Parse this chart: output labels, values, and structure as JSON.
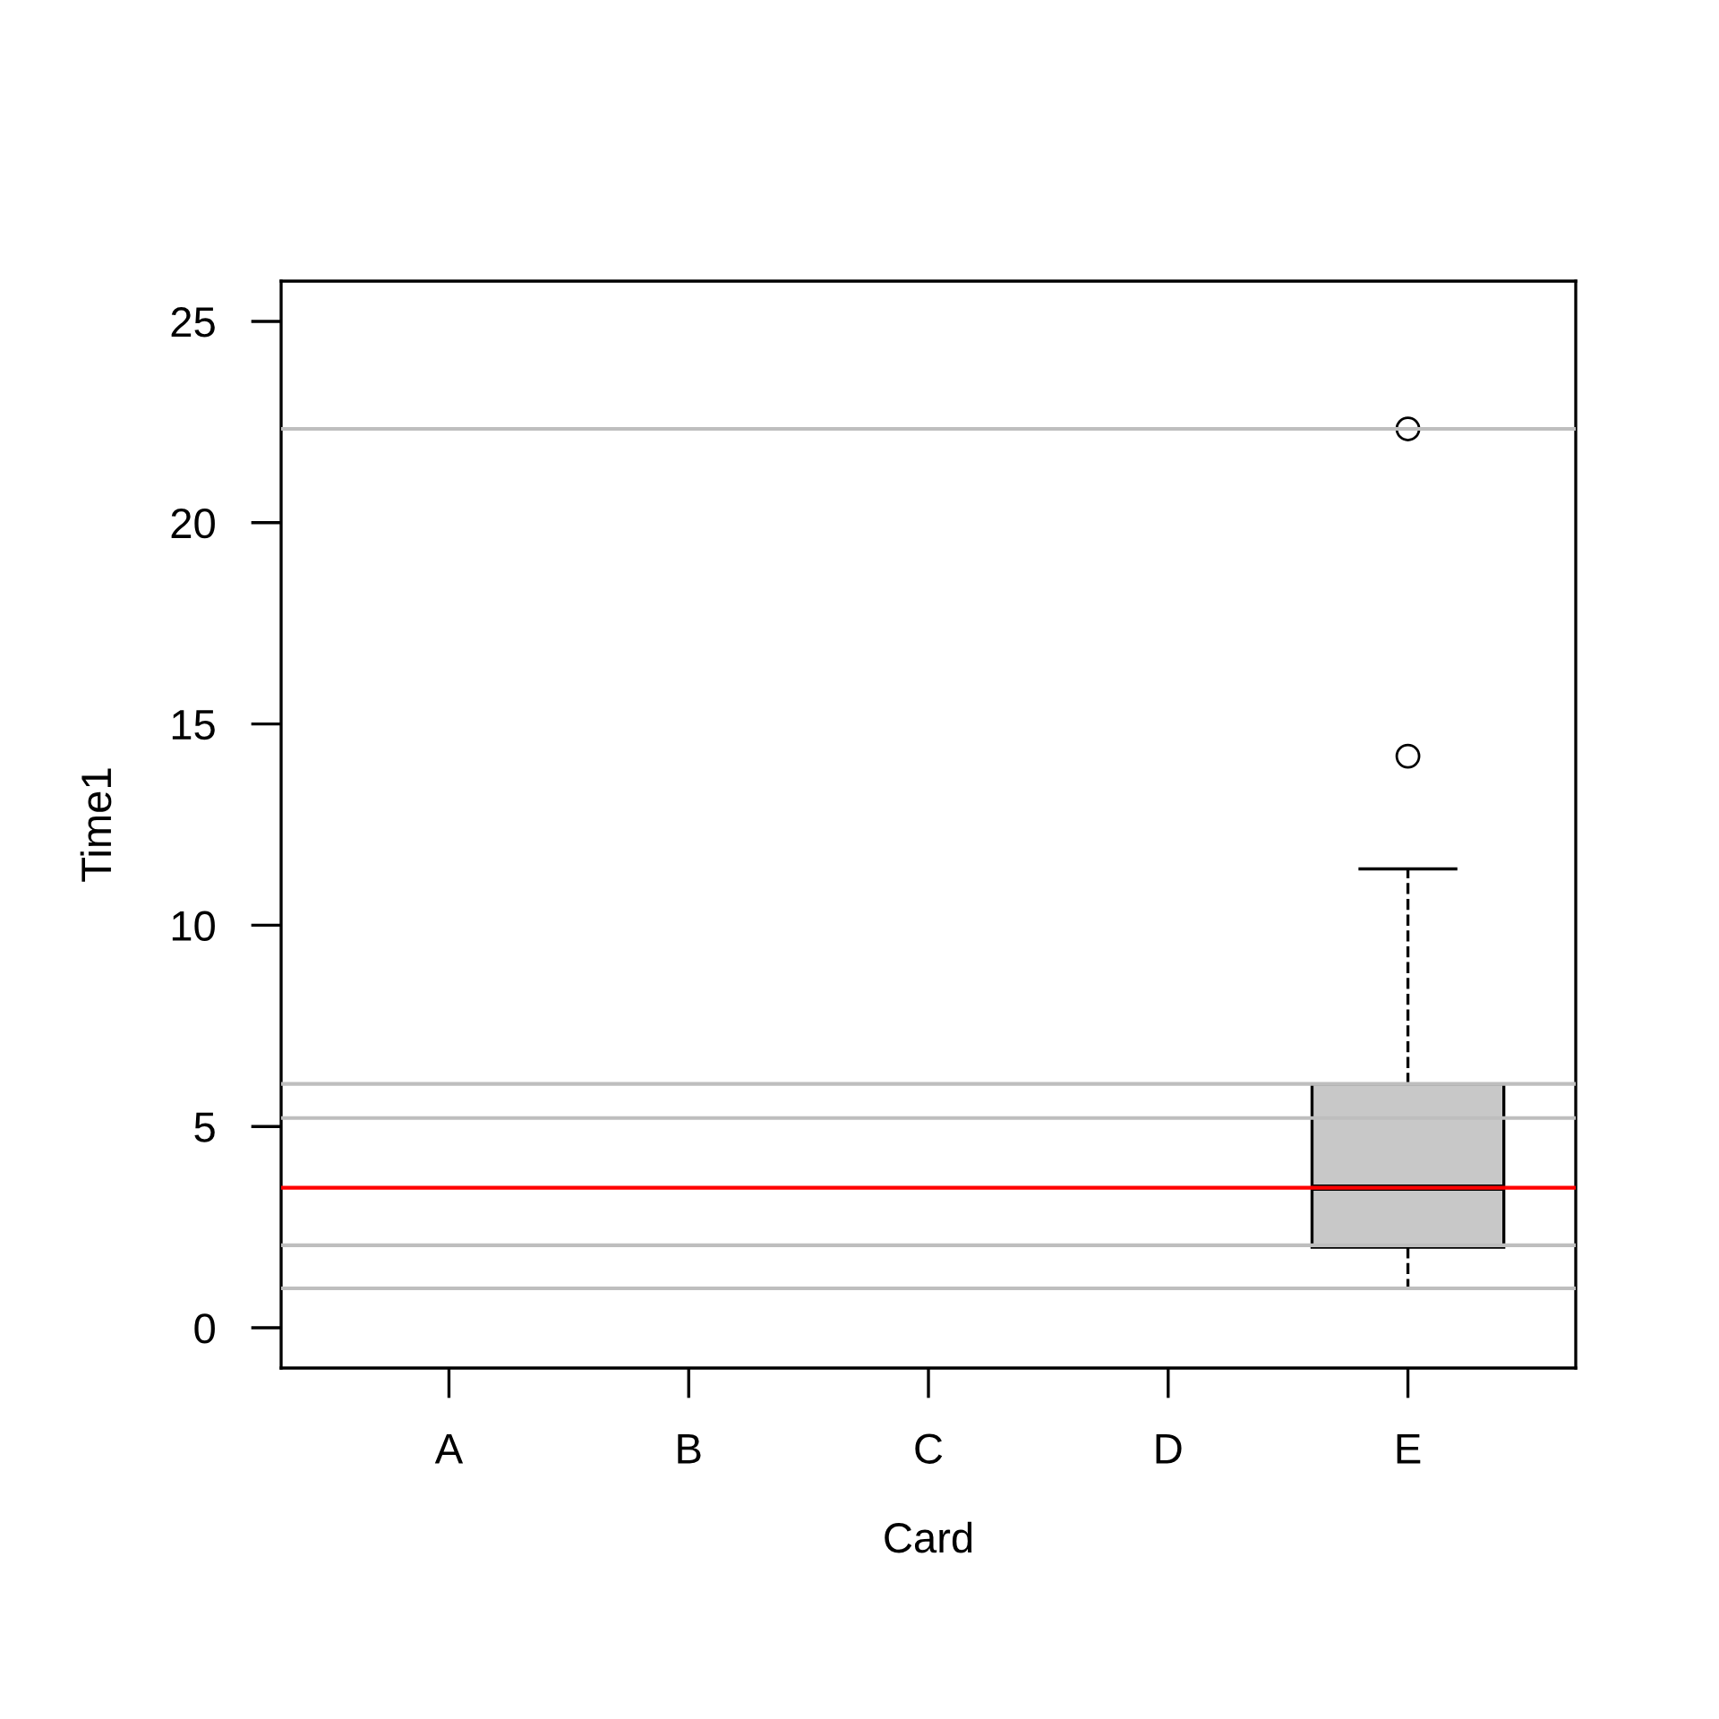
{
  "chart_data": {
    "type": "box",
    "xlabel": "Card",
    "ylabel": "Time1",
    "categories": [
      "A",
      "B",
      "C",
      "D",
      "E"
    ],
    "boxes": [
      null,
      null,
      null,
      null,
      {
        "low": 0.98,
        "q1": 2.0,
        "median": 3.48,
        "q3": 6.06,
        "high": 11.4,
        "outliers": [
          14.2,
          22.33
        ]
      }
    ],
    "color": "#c8c8c8",
    "ylim": [
      -1,
      26
    ],
    "yticks": [
      0,
      5,
      10,
      15,
      20,
      25
    ],
    "ref_lines": [
      {
        "axis": "y",
        "value": 22.33,
        "color": "#bebebe"
      },
      {
        "axis": "y",
        "value": 6.06,
        "color": "#bebebe"
      },
      {
        "axis": "y",
        "value": 5.21,
        "color": "#bebebe"
      },
      {
        "axis": "y",
        "value": 2.05,
        "color": "#bebebe"
      },
      {
        "axis": "y",
        "value": 0.98,
        "color": "#bebebe"
      },
      {
        "axis": "y",
        "value": 3.48,
        "color": "#ff0000"
      }
    ],
    "grid": false,
    "legend": false
  }
}
